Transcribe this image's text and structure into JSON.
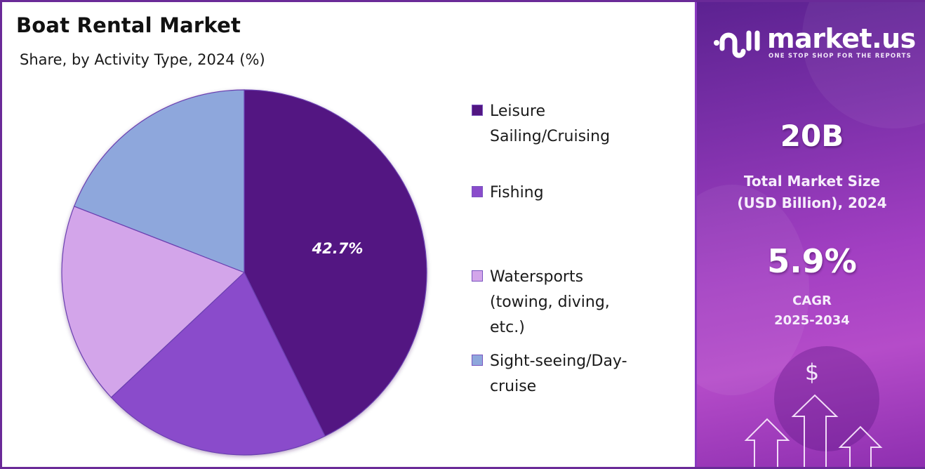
{
  "header": {
    "title": "Boat Rental Market",
    "subtitle": "Share, by Activity Type, 2024 (%)"
  },
  "chart_data": {
    "type": "pie",
    "title": "Boat Rental Market",
    "subtitle": "Share, by Activity Type, 2024 (%)",
    "categories": [
      "Leisure Sailing/Cruising",
      "Fishing",
      "Watersports (towing, diving, etc.)",
      "Sight-seeing/Day-cruise"
    ],
    "values": [
      42.7,
      20.3,
      17.9,
      19.1
    ],
    "labeled_values": {
      "Leisure Sailing/Cruising": 42.7
    },
    "colors": [
      "#521682",
      "#8a4ccb",
      "#d3a5ea",
      "#8ea7dc"
    ],
    "start_angle": "12 o'clock",
    "direction": "clockwise",
    "legend_position": "right"
  },
  "pie": {
    "slice_label": "42.7%"
  },
  "legend": {
    "items": [
      {
        "label": "Leisure Sailing/Cruising",
        "color": "#521682"
      },
      {
        "label": "Fishing",
        "color": "#8a4ccb"
      },
      {
        "label": "Watersports (towing, diving, etc.)",
        "color": "#d3a5ea"
      },
      {
        "label": "Sight-seeing/Day-cruise",
        "color": "#8ea7dc"
      }
    ]
  },
  "sidebar": {
    "brand": "market.us",
    "tagline": "ONE STOP SHOP FOR THE REPORTS",
    "market_size_value": "20B",
    "market_size_caption_line1": "Total Market Size",
    "market_size_caption_line2": "(USD Billion), 2024",
    "cagr_value": "5.9%",
    "cagr_caption_line1": "CAGR",
    "cagr_caption_line2": "2025-2034",
    "dollar_symbol": "$"
  },
  "colors": {
    "frame": "#6a2a98",
    "accent": "#521682"
  }
}
